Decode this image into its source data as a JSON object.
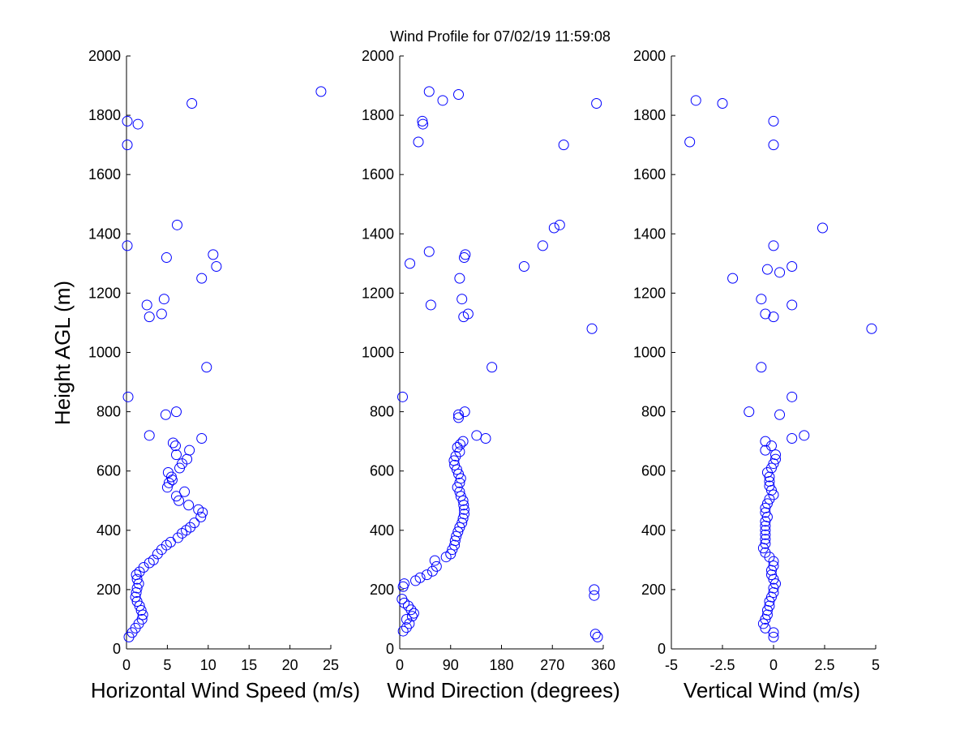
{
  "chart_data": {
    "type": "scatter",
    "title": "Wind Profile for  07/02/19 11:59:08",
    "ylabel": "Height AGL (m)",
    "ylim": [
      0,
      2000
    ],
    "yticks": [
      "0",
      "200",
      "400",
      "600",
      "800",
      "1000",
      "1200",
      "1400",
      "1600",
      "1800",
      "2000"
    ],
    "marker_color": "#0000ff",
    "panels": [
      {
        "id": "speed",
        "xlabel": "Horizontal Wind Speed (m/s)",
        "xlim": [
          0,
          25
        ],
        "xticks": [
          0,
          5,
          10,
          15,
          20,
          25
        ],
        "xtick_labels": [
          "0",
          "5",
          "10",
          "15",
          "20",
          "25"
        ],
        "points": [
          [
            0.3,
            40
          ],
          [
            0.7,
            55
          ],
          [
            1.1,
            70
          ],
          [
            1.5,
            85
          ],
          [
            1.9,
            100
          ],
          [
            2.0,
            115
          ],
          [
            1.8,
            130
          ],
          [
            1.6,
            145
          ],
          [
            1.3,
            160
          ],
          [
            1.1,
            175
          ],
          [
            1.2,
            190
          ],
          [
            1.3,
            205
          ],
          [
            1.5,
            220
          ],
          [
            1.3,
            235
          ],
          [
            1.2,
            250
          ],
          [
            1.6,
            260
          ],
          [
            2.1,
            275
          ],
          [
            2.8,
            290
          ],
          [
            3.3,
            300
          ],
          [
            3.8,
            320
          ],
          [
            4.3,
            335
          ],
          [
            4.9,
            350
          ],
          [
            5.4,
            360
          ],
          [
            6.3,
            375
          ],
          [
            6.8,
            390
          ],
          [
            7.3,
            400
          ],
          [
            7.8,
            410
          ],
          [
            8.3,
            425
          ],
          [
            9.1,
            445
          ],
          [
            9.3,
            460
          ],
          [
            8.8,
            470
          ],
          [
            7.6,
            485
          ],
          [
            6.4,
            500
          ],
          [
            6.1,
            515
          ],
          [
            7.1,
            530
          ],
          [
            5.0,
            545
          ],
          [
            5.2,
            560
          ],
          [
            5.6,
            570
          ],
          [
            5.5,
            580
          ],
          [
            5.1,
            595
          ],
          [
            6.5,
            610
          ],
          [
            6.8,
            625
          ],
          [
            7.4,
            640
          ],
          [
            6.1,
            655
          ],
          [
            7.7,
            670
          ],
          [
            6.0,
            685
          ],
          [
            5.7,
            695
          ],
          [
            9.2,
            710
          ],
          [
            2.8,
            720
          ],
          [
            4.8,
            790
          ],
          [
            6.1,
            800
          ],
          [
            0.2,
            850
          ],
          [
            9.8,
            950
          ],
          [
            2.8,
            1120
          ],
          [
            4.3,
            1130
          ],
          [
            2.5,
            1160
          ],
          [
            4.6,
            1180
          ],
          [
            9.2,
            1250
          ],
          [
            11.0,
            1290
          ],
          [
            4.9,
            1320
          ],
          [
            10.6,
            1330
          ],
          [
            0.1,
            1360
          ],
          [
            6.2,
            1430
          ],
          [
            0.1,
            1700
          ],
          [
            1.4,
            1770
          ],
          [
            0.1,
            1780
          ],
          [
            8.0,
            1840
          ],
          [
            23.8,
            1880
          ]
        ]
      },
      {
        "id": "direction",
        "xlabel": "Wind Direction (degrees)",
        "xlim": [
          0,
          360
        ],
        "xticks": [
          0,
          90,
          180,
          270,
          360
        ],
        "xtick_labels": [
          "0",
          "90",
          "180",
          "270",
          "360"
        ],
        "points": [
          [
            6,
            60
          ],
          [
            12,
            72
          ],
          [
            17,
            85
          ],
          [
            12,
            100
          ],
          [
            22,
            110
          ],
          [
            25,
            120
          ],
          [
            20,
            132
          ],
          [
            15,
            145
          ],
          [
            8,
            155
          ],
          [
            4,
            168
          ],
          [
            6,
            210
          ],
          [
            8,
            220
          ],
          [
            28,
            230
          ],
          [
            36,
            240
          ],
          [
            48,
            250
          ],
          [
            58,
            262
          ],
          [
            65,
            278
          ],
          [
            62,
            298
          ],
          [
            82,
            310
          ],
          [
            90,
            320
          ],
          [
            93,
            335
          ],
          [
            97,
            350
          ],
          [
            98,
            365
          ],
          [
            100,
            380
          ],
          [
            103,
            395
          ],
          [
            106,
            410
          ],
          [
            110,
            425
          ],
          [
            112,
            440
          ],
          [
            114,
            455
          ],
          [
            114,
            470
          ],
          [
            113,
            485
          ],
          [
            112,
            500
          ],
          [
            108,
            515
          ],
          [
            106,
            530
          ],
          [
            102,
            545
          ],
          [
            106,
            560
          ],
          [
            108,
            575
          ],
          [
            104,
            590
          ],
          [
            101,
            605
          ],
          [
            97,
            620
          ],
          [
            96,
            635
          ],
          [
            99,
            650
          ],
          [
            106,
            665
          ],
          [
            102,
            680
          ],
          [
            107,
            690
          ],
          [
            112,
            700
          ],
          [
            152,
            710
          ],
          [
            136,
            720
          ],
          [
            104,
            780
          ],
          [
            104,
            790
          ],
          [
            115,
            800
          ],
          [
            5,
            850
          ],
          [
            163,
            950
          ],
          [
            113,
            1120
          ],
          [
            121,
            1130
          ],
          [
            55,
            1160
          ],
          [
            110,
            1180
          ],
          [
            106,
            1250
          ],
          [
            220,
            1290
          ],
          [
            18,
            1300
          ],
          [
            114,
            1320
          ],
          [
            116,
            1330
          ],
          [
            52,
            1340
          ],
          [
            253,
            1360
          ],
          [
            273,
            1420
          ],
          [
            283,
            1430
          ],
          [
            33,
            1710
          ],
          [
            41,
            1770
          ],
          [
            40,
            1780
          ],
          [
            76,
            1850
          ],
          [
            104,
            1870
          ],
          [
            52,
            1880
          ],
          [
            340,
            1080
          ],
          [
            290,
            1700
          ],
          [
            348,
            1840
          ],
          [
            344,
            180
          ],
          [
            344,
            200
          ],
          [
            346,
            50
          ],
          [
            350,
            40
          ]
        ]
      },
      {
        "id": "vertical",
        "xlabel": "Vertical Wind (m/s)",
        "xlim": [
          -5,
          5
        ],
        "xticks": [
          -5,
          -2.5,
          0,
          2.5,
          5
        ],
        "xtick_labels": [
          "-5",
          "-2.5",
          "0",
          "2.5",
          "5"
        ],
        "points": [
          [
            0.0,
            40
          ],
          [
            0.0,
            55
          ],
          [
            -0.4,
            70
          ],
          [
            -0.5,
            85
          ],
          [
            -0.4,
            100
          ],
          [
            -0.3,
            115
          ],
          [
            -0.3,
            130
          ],
          [
            -0.2,
            145
          ],
          [
            -0.2,
            160
          ],
          [
            -0.1,
            175
          ],
          [
            0.0,
            190
          ],
          [
            0.0,
            205
          ],
          [
            0.1,
            220
          ],
          [
            0.0,
            235
          ],
          [
            -0.1,
            250
          ],
          [
            -0.1,
            265
          ],
          [
            0.0,
            280
          ],
          [
            0.0,
            295
          ],
          [
            -0.2,
            310
          ],
          [
            -0.4,
            325
          ],
          [
            -0.5,
            340
          ],
          [
            -0.4,
            355
          ],
          [
            -0.4,
            370
          ],
          [
            -0.4,
            385
          ],
          [
            -0.4,
            400
          ],
          [
            -0.4,
            415
          ],
          [
            -0.4,
            430
          ],
          [
            -0.3,
            445
          ],
          [
            -0.4,
            460
          ],
          [
            -0.4,
            475
          ],
          [
            -0.3,
            490
          ],
          [
            -0.2,
            505
          ],
          [
            0.0,
            520
          ],
          [
            -0.1,
            535
          ],
          [
            -0.2,
            550
          ],
          [
            -0.2,
            565
          ],
          [
            -0.2,
            580
          ],
          [
            -0.3,
            595
          ],
          [
            -0.1,
            610
          ],
          [
            0.0,
            625
          ],
          [
            0.1,
            640
          ],
          [
            0.1,
            655
          ],
          [
            -0.4,
            670
          ],
          [
            -0.1,
            685
          ],
          [
            -0.4,
            700
          ],
          [
            1.5,
            720
          ],
          [
            0.9,
            710
          ],
          [
            0.3,
            790
          ],
          [
            -1.2,
            800
          ],
          [
            0.9,
            850
          ],
          [
            -0.6,
            950
          ],
          [
            4.8,
            1080
          ],
          [
            0.0,
            1120
          ],
          [
            -0.4,
            1130
          ],
          [
            0.9,
            1160
          ],
          [
            -0.6,
            1180
          ],
          [
            -2.0,
            1250
          ],
          [
            0.3,
            1270
          ],
          [
            -0.3,
            1280
          ],
          [
            0.9,
            1290
          ],
          [
            0.0,
            1360
          ],
          [
            2.4,
            1420
          ],
          [
            -4.1,
            1710
          ],
          [
            0.0,
            1700
          ],
          [
            0.0,
            1780
          ],
          [
            -3.8,
            1850
          ],
          [
            -2.5,
            1840
          ]
        ]
      }
    ]
  }
}
